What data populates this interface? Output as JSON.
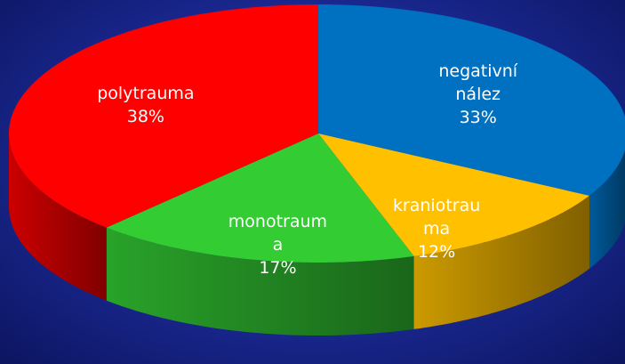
{
  "chart_data": {
    "type": "pie",
    "categories": [
      "negativní nález",
      "kraniotrauma",
      "monotrauma",
      "polytrauma"
    ],
    "values": [
      33,
      12,
      17,
      38
    ],
    "value_labels": [
      "33%",
      "12%",
      "17%",
      "38%"
    ],
    "colors": [
      "#0070c0",
      "#ffc000",
      "#33cc33",
      "#ff0000"
    ]
  }
}
